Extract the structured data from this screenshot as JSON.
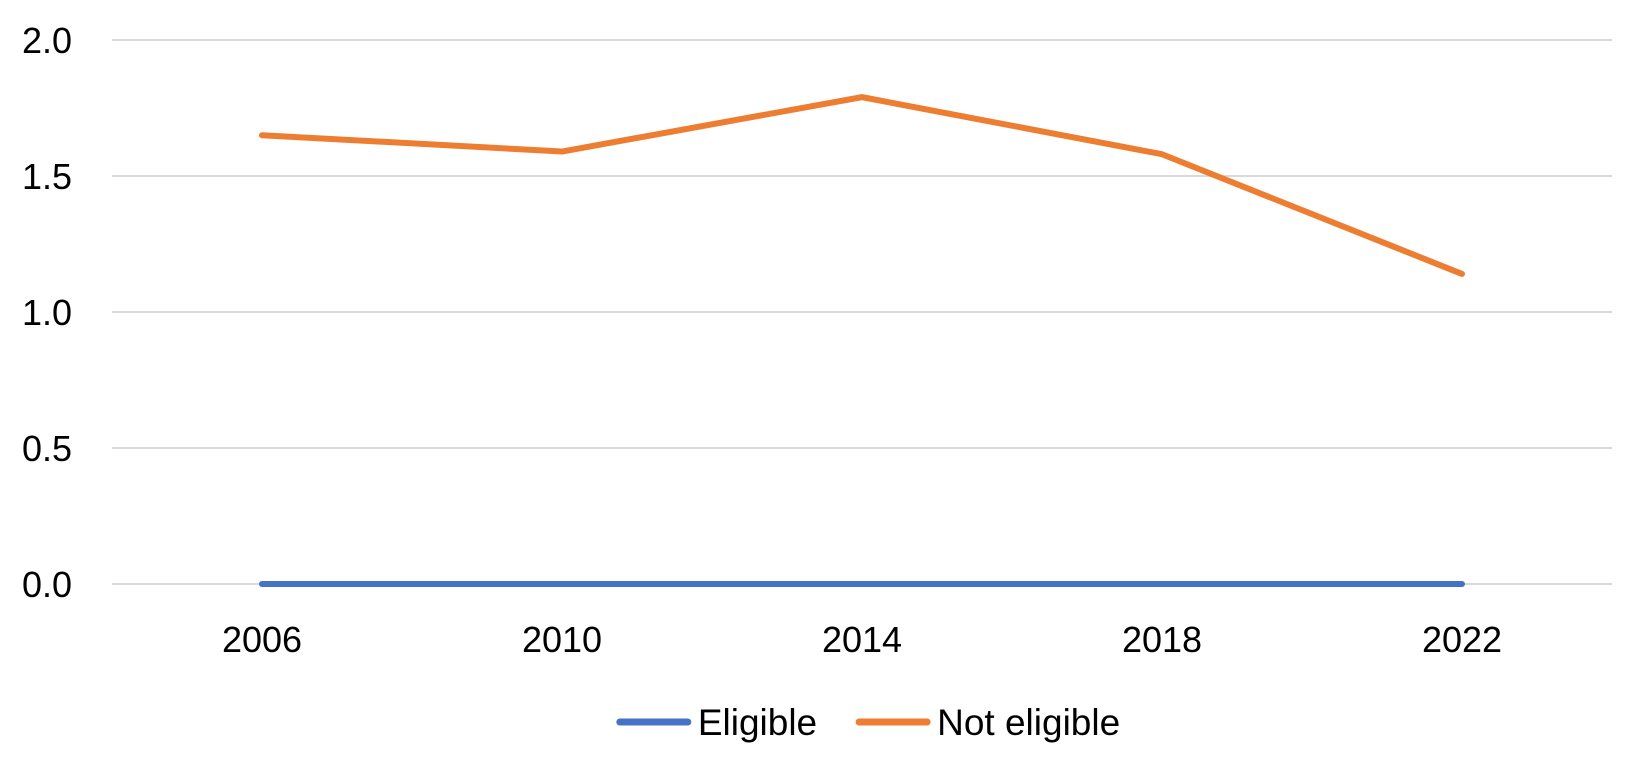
{
  "chart_data": {
    "type": "line",
    "title": "",
    "xlabel": "",
    "ylabel": "",
    "categories": [
      "2006",
      "2010",
      "2014",
      "2018",
      "2022"
    ],
    "ylim": [
      0,
      2.0
    ],
    "yticks": [
      "0.0",
      "0.5",
      "1.0",
      "1.5",
      "2.0"
    ],
    "grid": true,
    "legend_position": "bottom",
    "series": [
      {
        "name": "Eligible",
        "color": "#4472c4",
        "values": [
          0,
          0,
          0,
          0,
          0
        ]
      },
      {
        "name": "Not eligible",
        "color": "#ed7d31",
        "values": [
          1.65,
          1.59,
          1.79,
          1.58,
          1.14
        ]
      }
    ]
  }
}
